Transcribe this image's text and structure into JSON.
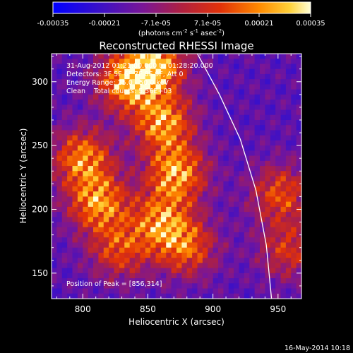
{
  "chart_data": {
    "type": "heatmap",
    "title": "Reconstructed RHESSI Image",
    "xlabel": "Heliocentric X (arcsec)",
    "ylabel": "Heliocentric Y (arcsec)",
    "xlim": [
      776,
      968
    ],
    "ylim": [
      130,
      322
    ],
    "x_ticks": [
      "800",
      "850",
      "900",
      "950"
    ],
    "y_ticks": [
      "150",
      "200",
      "250",
      "300"
    ],
    "colorbar": {
      "range": [
        -0.00035,
        0.00035
      ],
      "tick_labels": [
        "-0.00035",
        "-0.00021",
        "-7.1e-05",
        "7.1e-05",
        "0.00021",
        "0.00035"
      ],
      "unit_main": "(photons cm",
      "unit_sup1": "-2",
      "unit_s": " s",
      "unit_sup2": "-1",
      "unit_asec": " asec",
      "unit_sup3": "-2",
      "unit_close": ")"
    },
    "annotations": {
      "time_range": "31-Aug-2012 01:21:00.000 to 01:28:20.000",
      "detectors": "Detectors: 3F 5F 6F 7F 8F 9F, Att 0",
      "energy": "Energy Range: 25.0 - 50.0 keV",
      "method_counts": "Clean    Total counts: 5.56E+03",
      "peak": "Position of Peak = [856,314]"
    },
    "emission_sources": [
      {
        "x": 800,
        "y": 240,
        "amp": 0.00028
      },
      {
        "x": 812,
        "y": 205,
        "amp": 0.0003
      },
      {
        "x": 834,
        "y": 300,
        "amp": 0.00032
      },
      {
        "x": 856,
        "y": 314,
        "amp": 0.00035
      },
      {
        "x": 862,
        "y": 268,
        "amp": 0.00031
      },
      {
        "x": 872,
        "y": 228,
        "amp": 0.00033
      },
      {
        "x": 860,
        "y": 190,
        "amp": 0.00025
      },
      {
        "x": 880,
        "y": 170,
        "amp": 0.0002
      },
      {
        "x": 828,
        "y": 168,
        "amp": 0.00016
      },
      {
        "x": 952,
        "y": 212,
        "amp": 0.00018
      },
      {
        "x": 958,
        "y": 168,
        "amp": 0.00012
      }
    ],
    "limb_curve": [
      [
        888,
        322
      ],
      [
        905,
        290
      ],
      [
        921,
        255
      ],
      [
        933,
        215
      ],
      [
        941,
        172
      ],
      [
        945,
        130
      ]
    ],
    "timestamp": "16-May-2014 10:18"
  }
}
